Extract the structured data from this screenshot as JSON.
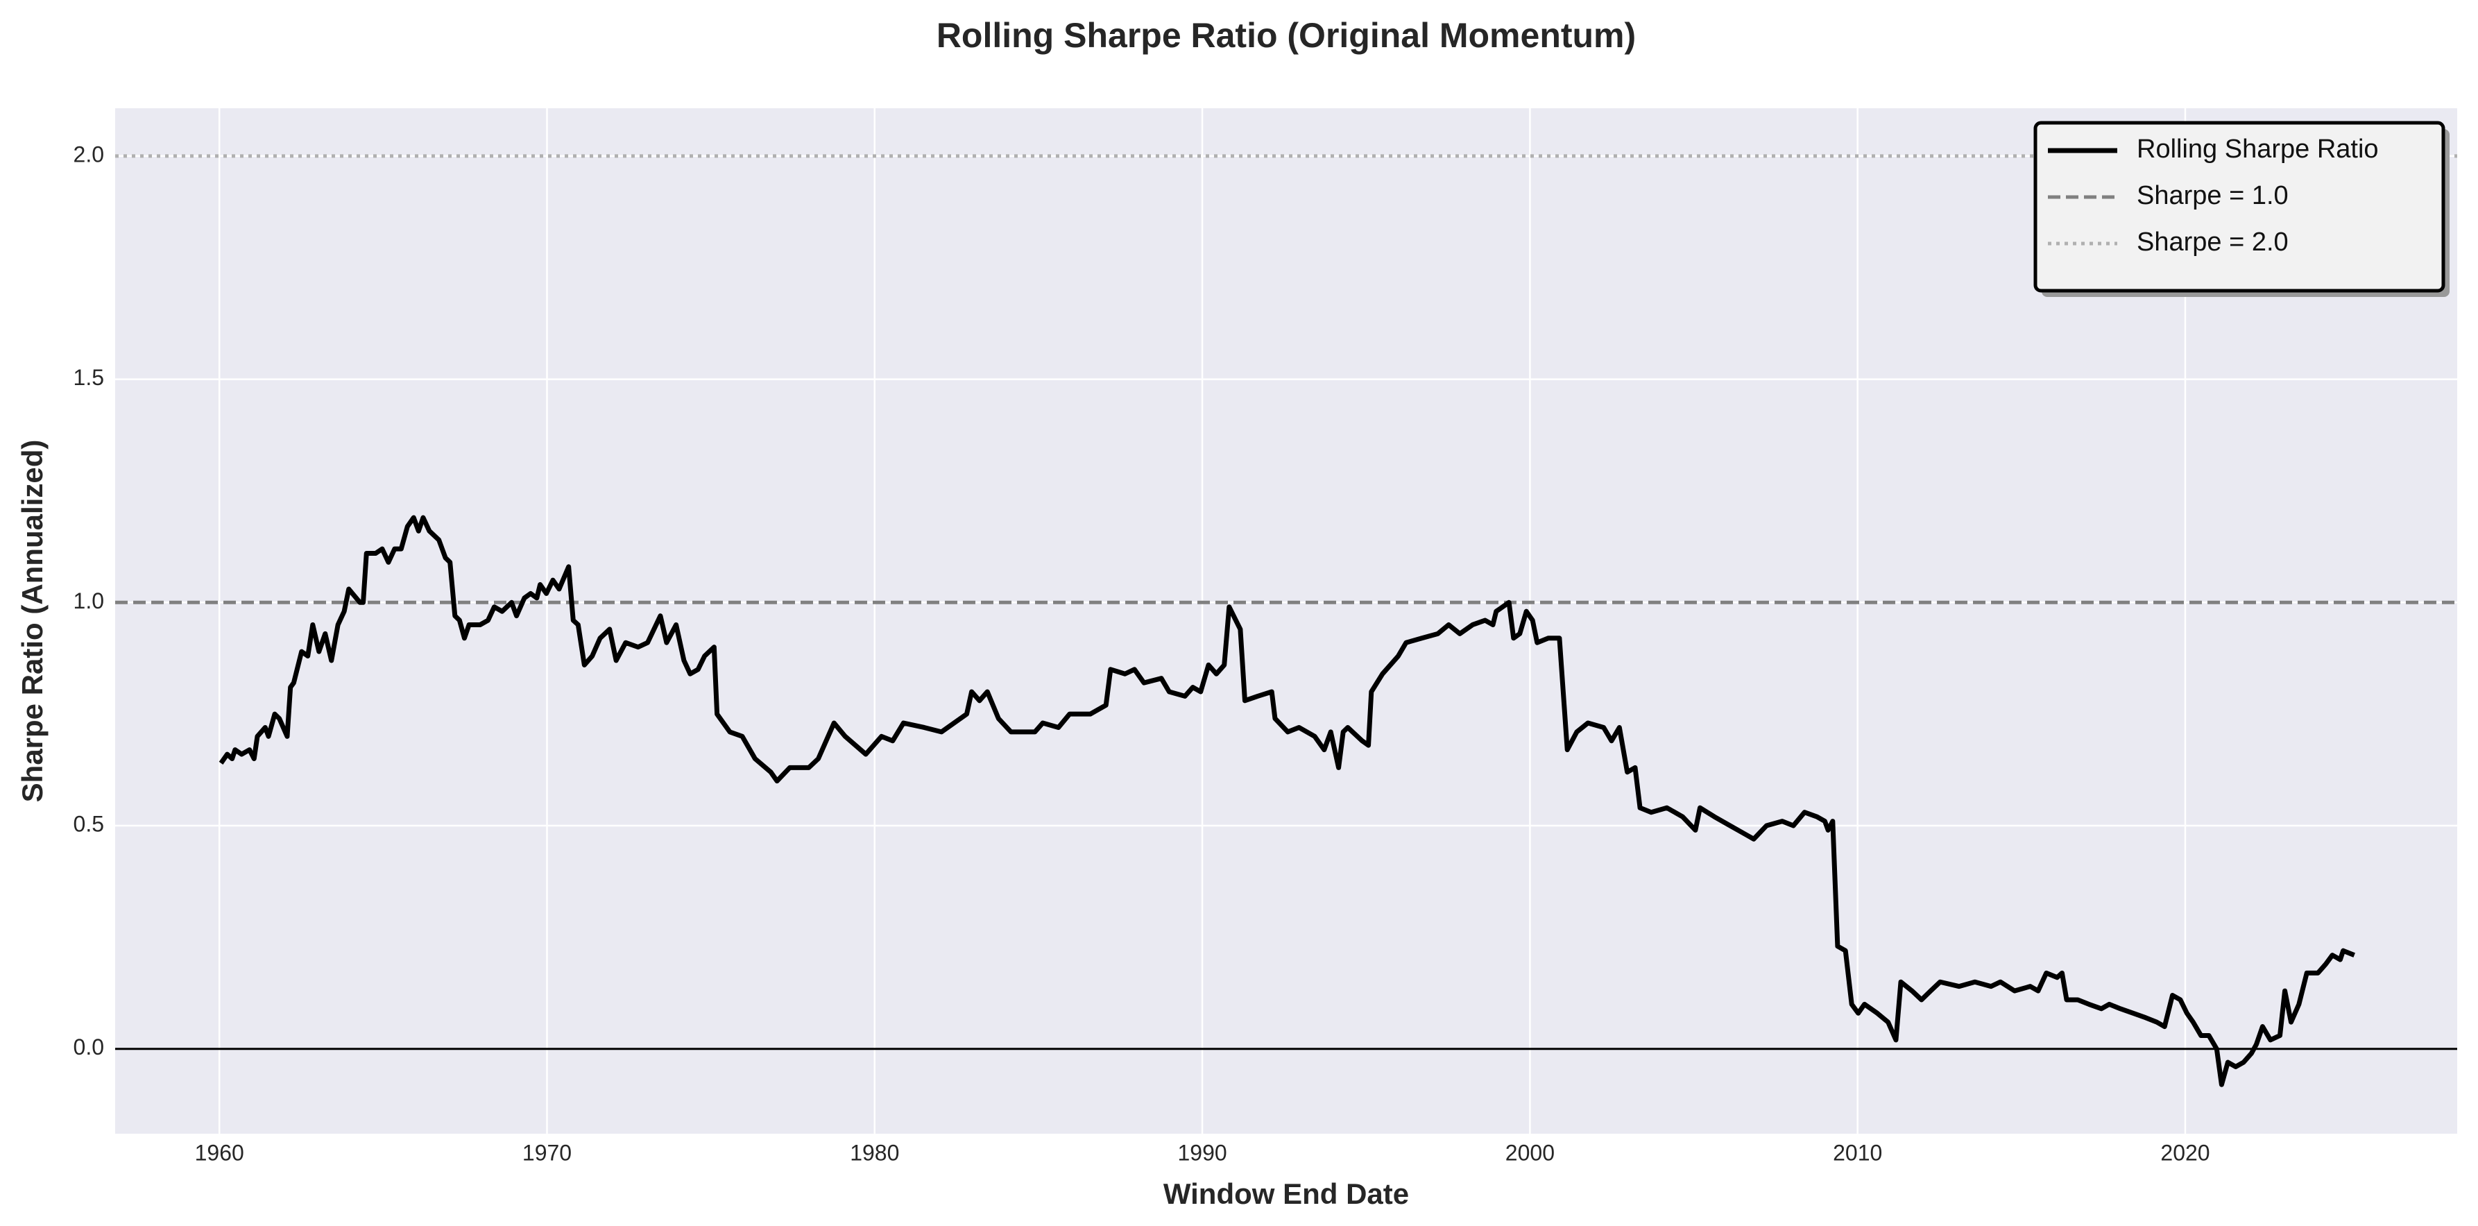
{
  "chart_data": {
    "type": "line",
    "title": "Rolling Sharpe Ratio (Original Momentum)",
    "x_label": "Window End Date",
    "y_label": "Sharpe Ratio (Annualized)",
    "xlim": [
      1956.82,
      2028.3
    ],
    "ylim": [
      -0.19,
      2.107
    ],
    "xticks": [
      1960,
      1970,
      1980,
      1990,
      2000,
      2010,
      2020
    ],
    "yticks": [
      {
        "value": 0,
        "label": "0.0"
      },
      {
        "value": 0.5,
        "label": "0.5"
      },
      {
        "value": 1,
        "label": "1.0"
      },
      {
        "value": 1.5,
        "label": "1.5"
      },
      {
        "value": 2,
        "label": "2.0"
      }
    ],
    "grid": true,
    "legend_location": "upper right",
    "x": [
      1960.05,
      1960.24,
      1960.39,
      1960.48,
      1960.68,
      1960.92,
      1961.06,
      1961.16,
      1961.4,
      1961.5,
      1961.69,
      1961.83,
      1962.07,
      1962.17,
      1962.27,
      1962.51,
      1962.7,
      1962.85,
      1963.04,
      1963.23,
      1963.42,
      1963.62,
      1963.81,
      1963.95,
      1964.29,
      1964.39,
      1964.49,
      1964.77,
      1964.97,
      1965.16,
      1965.35,
      1965.55,
      1965.74,
      1965.93,
      1966.08,
      1966.22,
      1966.41,
      1966.7,
      1966.9,
      1967.04,
      1967.19,
      1967.33,
      1967.48,
      1967.62,
      1967.96,
      1968.2,
      1968.39,
      1968.63,
      1968.92,
      1969.07,
      1969.31,
      1969.5,
      1969.69,
      1969.79,
      1969.98,
      1970.18,
      1970.37,
      1970.66,
      1970.8,
      1970.95,
      1971.14,
      1971.38,
      1971.62,
      1971.91,
      1972.11,
      1972.4,
      1972.78,
      1973.07,
      1973.46,
      1973.65,
      1973.94,
      1974.18,
      1974.37,
      1974.61,
      1974.81,
      1975.1,
      1975.19,
      1975.58,
      1975.96,
      1976.35,
      1976.83,
      1977.02,
      1977.41,
      1977.99,
      1978.28,
      1978.76,
      1979.1,
      1979.73,
      1980.21,
      1980.55,
      1980.88,
      1981.51,
      1982.04,
      1982.81,
      1982.96,
      1983.2,
      1983.44,
      1983.78,
      1984.16,
      1984.89,
      1985.13,
      1985.61,
      1985.95,
      1986.58,
      1987.06,
      1987.2,
      1987.64,
      1987.93,
      1988.22,
      1988.75,
      1988.99,
      1989.47,
      1989.71,
      1989.95,
      1990.19,
      1990.43,
      1990.67,
      1990.82,
      1991.16,
      1991.3,
      1991.69,
      1992.12,
      1992.22,
      1992.61,
      1992.95,
      1993.43,
      1993.72,
      1993.92,
      1994.16,
      1994.3,
      1994.44,
      1994.88,
      1995.07,
      1995.16,
      1995.5,
      1995.98,
      1996.22,
      1996.7,
      1997.19,
      1997.52,
      1997.86,
      1998.25,
      1998.63,
      1998.87,
      1998.97,
      1999.36,
      1999.5,
      1999.69,
      1999.89,
      2000.08,
      2000.22,
      2000.56,
      2000.9,
      2001.14,
      2001.43,
      2001.77,
      2002.25,
      2002.49,
      2002.73,
      2002.97,
      2003.21,
      2003.36,
      2003.7,
      2004.18,
      2004.66,
      2005.05,
      2005.19,
      2005.63,
      2006.11,
      2006.59,
      2006.83,
      2007.22,
      2007.7,
      2008.04,
      2008.38,
      2008.76,
      2009.0,
      2009.1,
      2009.24,
      2009.39,
      2009.63,
      2009.82,
      2010.02,
      2010.21,
      2010.6,
      2010.93,
      2011.17,
      2011.32,
      2011.66,
      2011.95,
      2012.23,
      2012.52,
      2013.1,
      2013.58,
      2014.07,
      2014.36,
      2014.79,
      2015.27,
      2015.51,
      2015.76,
      2016.09,
      2016.24,
      2016.38,
      2016.72,
      2017.06,
      2017.44,
      2017.68,
      2018.02,
      2018.41,
      2018.79,
      2019.13,
      2019.37,
      2019.61,
      2019.85,
      2020.05,
      2020.24,
      2020.48,
      2020.72,
      2020.96,
      2021.11,
      2021.3,
      2021.54,
      2021.78,
      2022.02,
      2022.17,
      2022.36,
      2022.6,
      2022.89,
      2023.04,
      2023.23,
      2023.47,
      2023.71,
      2024.05,
      2024.29,
      2024.49,
      2024.73,
      2024.82,
      2025.16
    ],
    "series": [
      {
        "name": "Rolling Sharpe Ratio",
        "color": "#000000",
        "values": [
          0.64,
          0.66,
          0.65,
          0.67,
          0.66,
          0.67,
          0.65,
          0.7,
          0.72,
          0.7,
          0.75,
          0.74,
          0.7,
          0.81,
          0.82,
          0.89,
          0.88,
          0.95,
          0.89,
          0.93,
          0.87,
          0.95,
          0.98,
          1.03,
          1.0,
          1.0,
          1.11,
          1.11,
          1.12,
          1.09,
          1.12,
          1.12,
          1.17,
          1.19,
          1.16,
          1.19,
          1.16,
          1.14,
          1.1,
          1.09,
          0.97,
          0.96,
          0.92,
          0.95,
          0.95,
          0.96,
          0.99,
          0.98,
          1.0,
          0.97,
          1.01,
          1.02,
          1.01,
          1.04,
          1.02,
          1.05,
          1.03,
          1.08,
          0.96,
          0.95,
          0.86,
          0.88,
          0.92,
          0.94,
          0.87,
          0.91,
          0.9,
          0.91,
          0.97,
          0.91,
          0.95,
          0.87,
          0.84,
          0.85,
          0.88,
          0.9,
          0.75,
          0.71,
          0.7,
          0.65,
          0.62,
          0.6,
          0.63,
          0.63,
          0.65,
          0.73,
          0.7,
          0.66,
          0.7,
          0.69,
          0.73,
          0.72,
          0.71,
          0.75,
          0.8,
          0.78,
          0.8,
          0.74,
          0.71,
          0.71,
          0.73,
          0.72,
          0.75,
          0.75,
          0.77,
          0.85,
          0.84,
          0.85,
          0.82,
          0.83,
          0.8,
          0.79,
          0.81,
          0.8,
          0.86,
          0.84,
          0.86,
          0.99,
          0.94,
          0.78,
          0.79,
          0.8,
          0.74,
          0.71,
          0.72,
          0.7,
          0.67,
          0.71,
          0.63,
          0.71,
          0.72,
          0.69,
          0.68,
          0.8,
          0.84,
          0.88,
          0.91,
          0.92,
          0.93,
          0.95,
          0.93,
          0.95,
          0.96,
          0.95,
          0.98,
          1.0,
          0.92,
          0.93,
          0.98,
          0.96,
          0.91,
          0.92,
          0.92,
          0.67,
          0.71,
          0.73,
          0.72,
          0.69,
          0.72,
          0.62,
          0.63,
          0.54,
          0.53,
          0.54,
          0.52,
          0.49,
          0.54,
          0.52,
          0.5,
          0.48,
          0.47,
          0.5,
          0.51,
          0.5,
          0.53,
          0.52,
          0.51,
          0.49,
          0.51,
          0.23,
          0.22,
          0.1,
          0.08,
          0.1,
          0.08,
          0.06,
          0.02,
          0.15,
          0.13,
          0.11,
          0.13,
          0.15,
          0.14,
          0.15,
          0.14,
          0.15,
          0.13,
          0.14,
          0.13,
          0.17,
          0.16,
          0.17,
          0.11,
          0.11,
          0.1,
          0.09,
          0.1,
          0.09,
          0.08,
          0.07,
          0.06,
          0.05,
          0.12,
          0.11,
          0.08,
          0.06,
          0.03,
          0.03,
          0.0,
          -0.08,
          -0.03,
          -0.04,
          -0.03,
          -0.01,
          0.01,
          0.05,
          0.02,
          0.03,
          0.13,
          0.06,
          0.1,
          0.17,
          0.17,
          0.19,
          0.21,
          0.2,
          0.22,
          0.21
        ]
      }
    ],
    "reference_lines": [
      {
        "name": "Sharpe = 1.0",
        "value": 1,
        "color": "#808080",
        "style": "dashed"
      },
      {
        "name": "Sharpe = 2.0",
        "value": 2,
        "color": "#b0b0b0",
        "style": "dotted"
      }
    ],
    "zero_line": {
      "value": 0,
      "color": "#000000"
    }
  }
}
